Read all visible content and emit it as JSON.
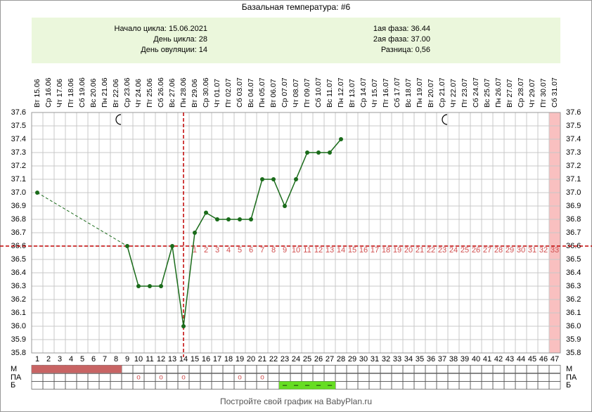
{
  "chart_data": {
    "type": "line",
    "title": "Базальная температура: #6",
    "info_left": [
      "Начало цикла: 15.06.2021",
      "День цикла: 28",
      "День овуляции: 14"
    ],
    "info_right": [
      "1ая фаза: 36.44",
      "2ая фаза: 37.00",
      "Разница: 0,56"
    ],
    "dates": [
      "Вт 15.06",
      "Ср 16.06",
      "Чт 17.06",
      "Пт 18.06",
      "Сб 19.06",
      "Вс 20.06",
      "Пн 21.06",
      "Вт 22.06",
      "Ср 23.06",
      "Чт 24.06",
      "Пт 25.06",
      "Сб 26.06",
      "Вс 27.06",
      "Пн 28.06",
      "Вт 29.06",
      "Ср 30.06",
      "Чт 01.07",
      "Пт 02.07",
      "Сб 03.07",
      "Вс 04.07",
      "Пн 05.07",
      "Вт 06.07",
      "Ср 07.07",
      "Чт 08.07",
      "Пт 09.07",
      "Сб 10.07",
      "Вс 11.07",
      "Пн 12.07",
      "Вт 13.07",
      "Ср 14.07",
      "Чт 15.07",
      "Пт 16.07",
      "Сб 17.07",
      "Вс 18.07",
      "Пн 19.07",
      "Вт 20.07",
      "Ср 21.07",
      "Чт 22.07",
      "Пт 23.07",
      "Сб 24.07",
      "Вс 25.07",
      "Пн 26.07",
      "Вт 27.07",
      "Ср 28.07",
      "Чт 29.07",
      "Пт 30.07",
      "Сб 31.07"
    ],
    "x": [
      1,
      2,
      3,
      4,
      5,
      6,
      7,
      8,
      9,
      10,
      11,
      12,
      13,
      14,
      15,
      16,
      17,
      18,
      19,
      20,
      21,
      22,
      23,
      24,
      25,
      26,
      27,
      28,
      29,
      30,
      31,
      32,
      33,
      34,
      35,
      36,
      37,
      38,
      39,
      40,
      41,
      42,
      43,
      44,
      45,
      46,
      47
    ],
    "series": [
      {
        "name": "Температура",
        "color": "#1a6b1a",
        "values": [
          37.0,
          null,
          null,
          null,
          null,
          null,
          null,
          null,
          36.6,
          36.3,
          36.3,
          36.3,
          36.6,
          36.0,
          36.7,
          36.85,
          36.8,
          36.8,
          36.8,
          36.8,
          37.1,
          37.1,
          36.9,
          37.1,
          37.3,
          37.3,
          37.3,
          37.4,
          null,
          null,
          null,
          null,
          null,
          null,
          null,
          null,
          null,
          null,
          null,
          null,
          null,
          null,
          null,
          null,
          null,
          null,
          null
        ]
      }
    ],
    "xlim": [
      0.5,
      47.5
    ],
    "ylim": [
      35.8,
      37.6
    ],
    "yticks": [
      35.8,
      35.9,
      {
        "value": 36,
        "label": "36.0"
      },
      36.1,
      36.2,
      36.3,
      36.4,
      36.5,
      36.6,
      36.7,
      36.8,
      36.9,
      {
        "value": 37,
        "label": "37.0"
      },
      37.1,
      37.2,
      37.3,
      37.4,
      37.5,
      37.6
    ],
    "cover_line": 36.6,
    "ovulation_day": 14,
    "phase2_days": [
      1,
      2,
      3,
      4,
      5,
      6,
      7,
      8,
      9,
      10,
      11,
      12,
      13,
      14,
      15,
      16,
      17,
      18,
      19,
      20,
      21,
      22,
      23,
      24,
      25,
      26,
      27,
      28,
      29,
      30,
      31,
      32,
      33
    ],
    "row_labels": [
      "М",
      "ПА",
      "Б"
    ],
    "m_days": [
      1,
      2,
      3,
      4,
      5,
      6,
      7,
      8
    ],
    "pa_days": [
      10,
      12,
      14,
      19,
      21
    ],
    "pa_mark": "o",
    "b_days": [
      23,
      24,
      25,
      26,
      27
    ],
    "b_mark": "–",
    "footer": "Постройте свой график на BabyPlan.ru"
  }
}
